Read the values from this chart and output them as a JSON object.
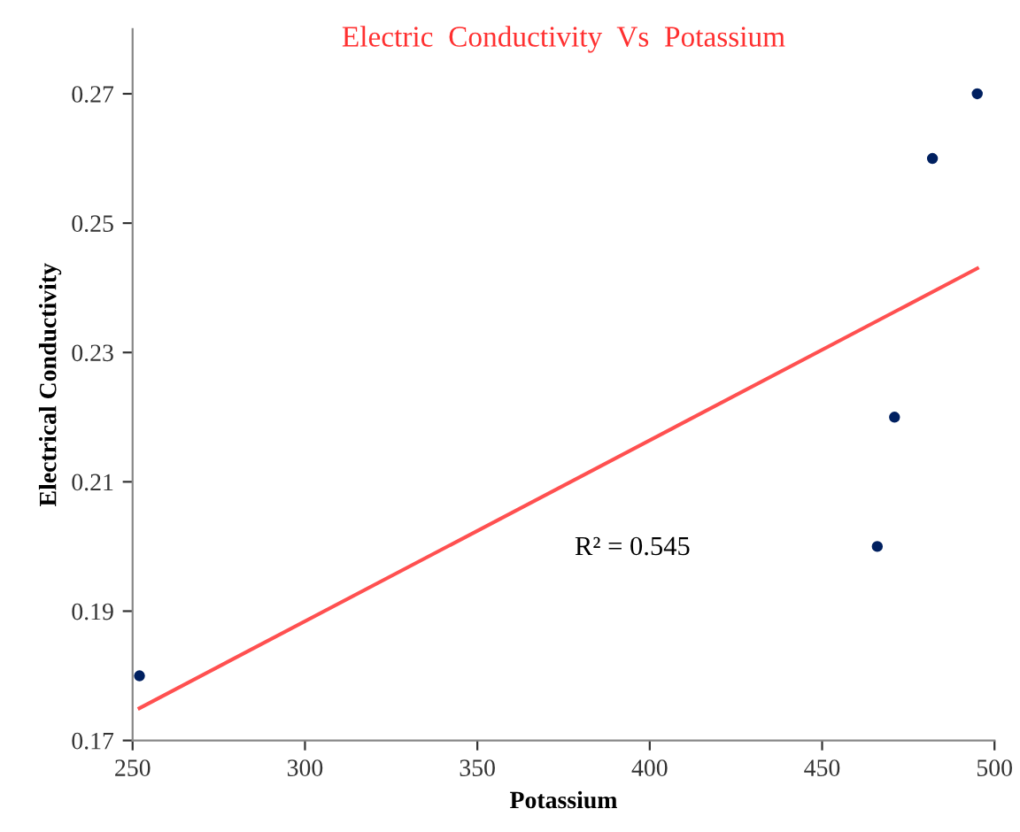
{
  "chart_data": {
    "type": "scatter",
    "title": "Electric  Conductivity  Vs  Potassium",
    "xlabel": "Potassium",
    "ylabel": "Electrical Conductivity",
    "series": [
      {
        "color": "#002060",
        "marker": "circle",
        "x": [
          252,
          466,
          471,
          482,
          495
        ],
        "values": [
          0.18,
          0.2,
          0.22,
          0.26,
          0.27
        ]
      },
      {
        "type": "line",
        "color": "#ff5050",
        "x": [
          252,
          495
        ],
        "values": [
          0.175,
          0.243
        ]
      }
    ],
    "annotations": [
      "R² = 0.545"
    ],
    "xlim": [
      250,
      500
    ],
    "xticks": [
      250,
      300,
      350,
      400,
      450,
      500
    ],
    "ylim": [
      0.17,
      0.28
    ],
    "yticks": [
      0.17,
      0.19,
      0.21,
      0.23,
      0.25,
      0.27
    ],
    "grid": false,
    "legend": false
  }
}
